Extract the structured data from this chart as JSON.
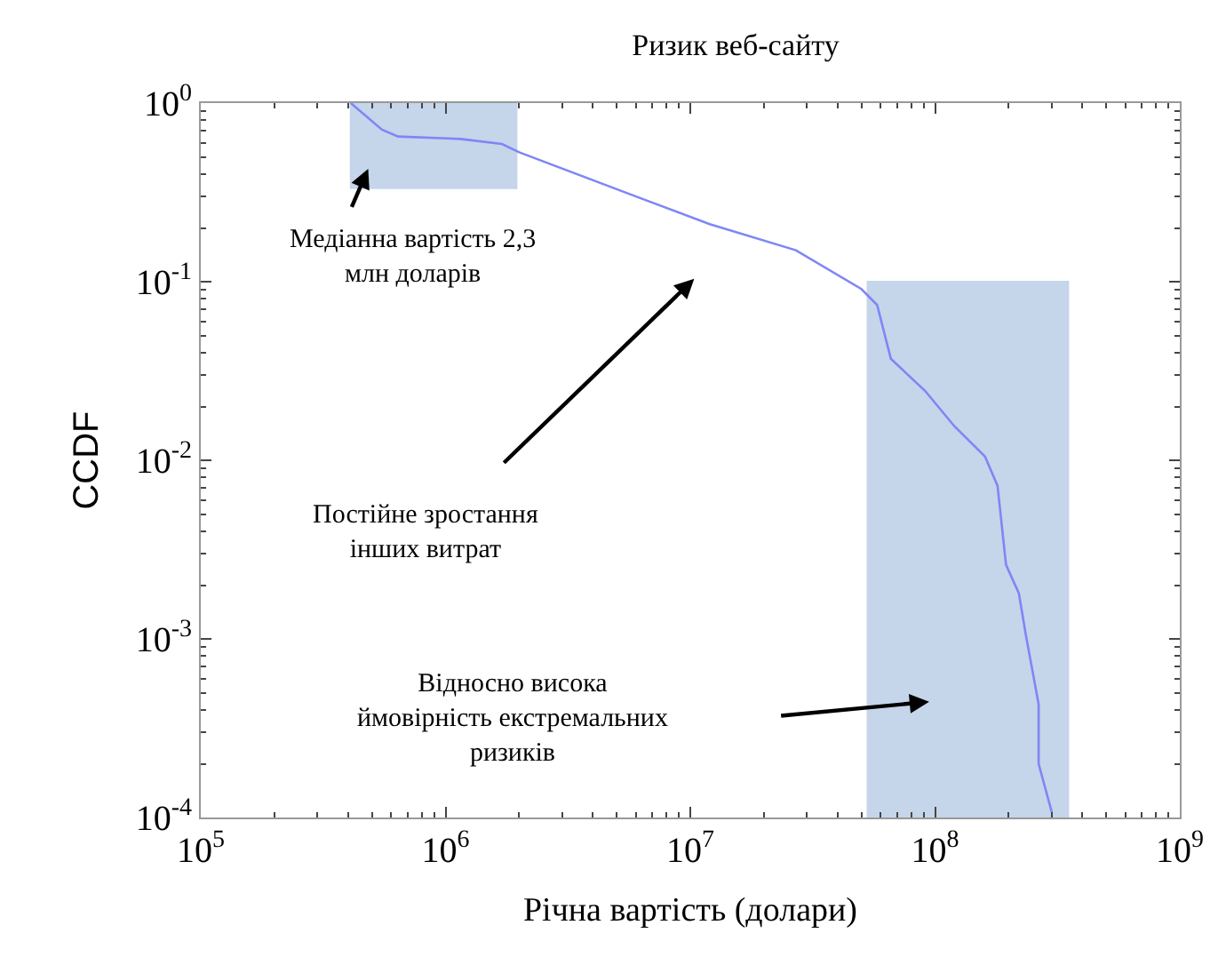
{
  "chart_data": {
    "type": "line",
    "title": "Ризик веб-сайту",
    "xlabel": "Річна вартість (долари)",
    "ylabel": "CCDF",
    "log": "xy",
    "marker": "none",
    "line_style": "solid",
    "xlim": [
      100000,
      1000000000
    ],
    "ylim": [
      0.0001,
      1
    ],
    "xticks": [
      {
        "value": 100000,
        "label": "10$^{5}$"
      },
      {
        "value": 1000000,
        "label": "10$^{6}$"
      },
      {
        "value": 10000000,
        "label": "10$^{7}$"
      },
      {
        "value": 100000000,
        "label": "10$^{8}$"
      },
      {
        "value": 1000000000,
        "label": "10$^{9}$"
      }
    ],
    "yticks": [
      {
        "value": 0.0001,
        "label": "10$^{-4}$"
      },
      {
        "value": 0.001,
        "label": "10$^{-3}$"
      },
      {
        "value": 0.01,
        "label": "10$^{-2}$"
      },
      {
        "value": 0.1,
        "label": "10$^{-1}$"
      },
      {
        "value": 1,
        "label": "10$^{0}$"
      }
    ],
    "series": [
      {
        "type": "area",
        "color": "#c5d5ea",
        "x": [
          410000,
          410000,
          1950000,
          1950000
        ],
        "values": [
          0.33,
          1,
          1,
          0.33
        ]
      },
      {
        "type": "area",
        "color": "#c5d5ea",
        "x": [
          53000000,
          53000000,
          350000000,
          350000000
        ],
        "values": [
          0.0001,
          0.1,
          0.1,
          0.0001
        ]
      },
      {
        "color": "#7f86f5",
        "x": [
          410000,
          550000,
          640000,
          1150000,
          1700000,
          2000000,
          6000000,
          12000000,
          27000000,
          50000000,
          58000000,
          66000000,
          91000000,
          120000000,
          160000000,
          180000000,
          195000000,
          220000000,
          235000000,
          265000000,
          265000000,
          300000000
        ],
        "values": [
          1,
          0.71,
          0.65,
          0.63,
          0.59,
          0.53,
          0.3,
          0.21,
          0.15,
          0.091,
          0.074,
          0.037,
          0.0245,
          0.0155,
          0.0105,
          0.0072,
          0.0026,
          0.0018,
          0.00105,
          0.00043,
          0.0002,
          0.000107
        ]
      }
    ],
    "annotations": [
      "Медіанна вартість 2,3\nмлн доларів",
      "Постійне зростання\nінших витрат",
      "Відносно висока\nймовірність екстремальних\nризиків"
    ]
  }
}
